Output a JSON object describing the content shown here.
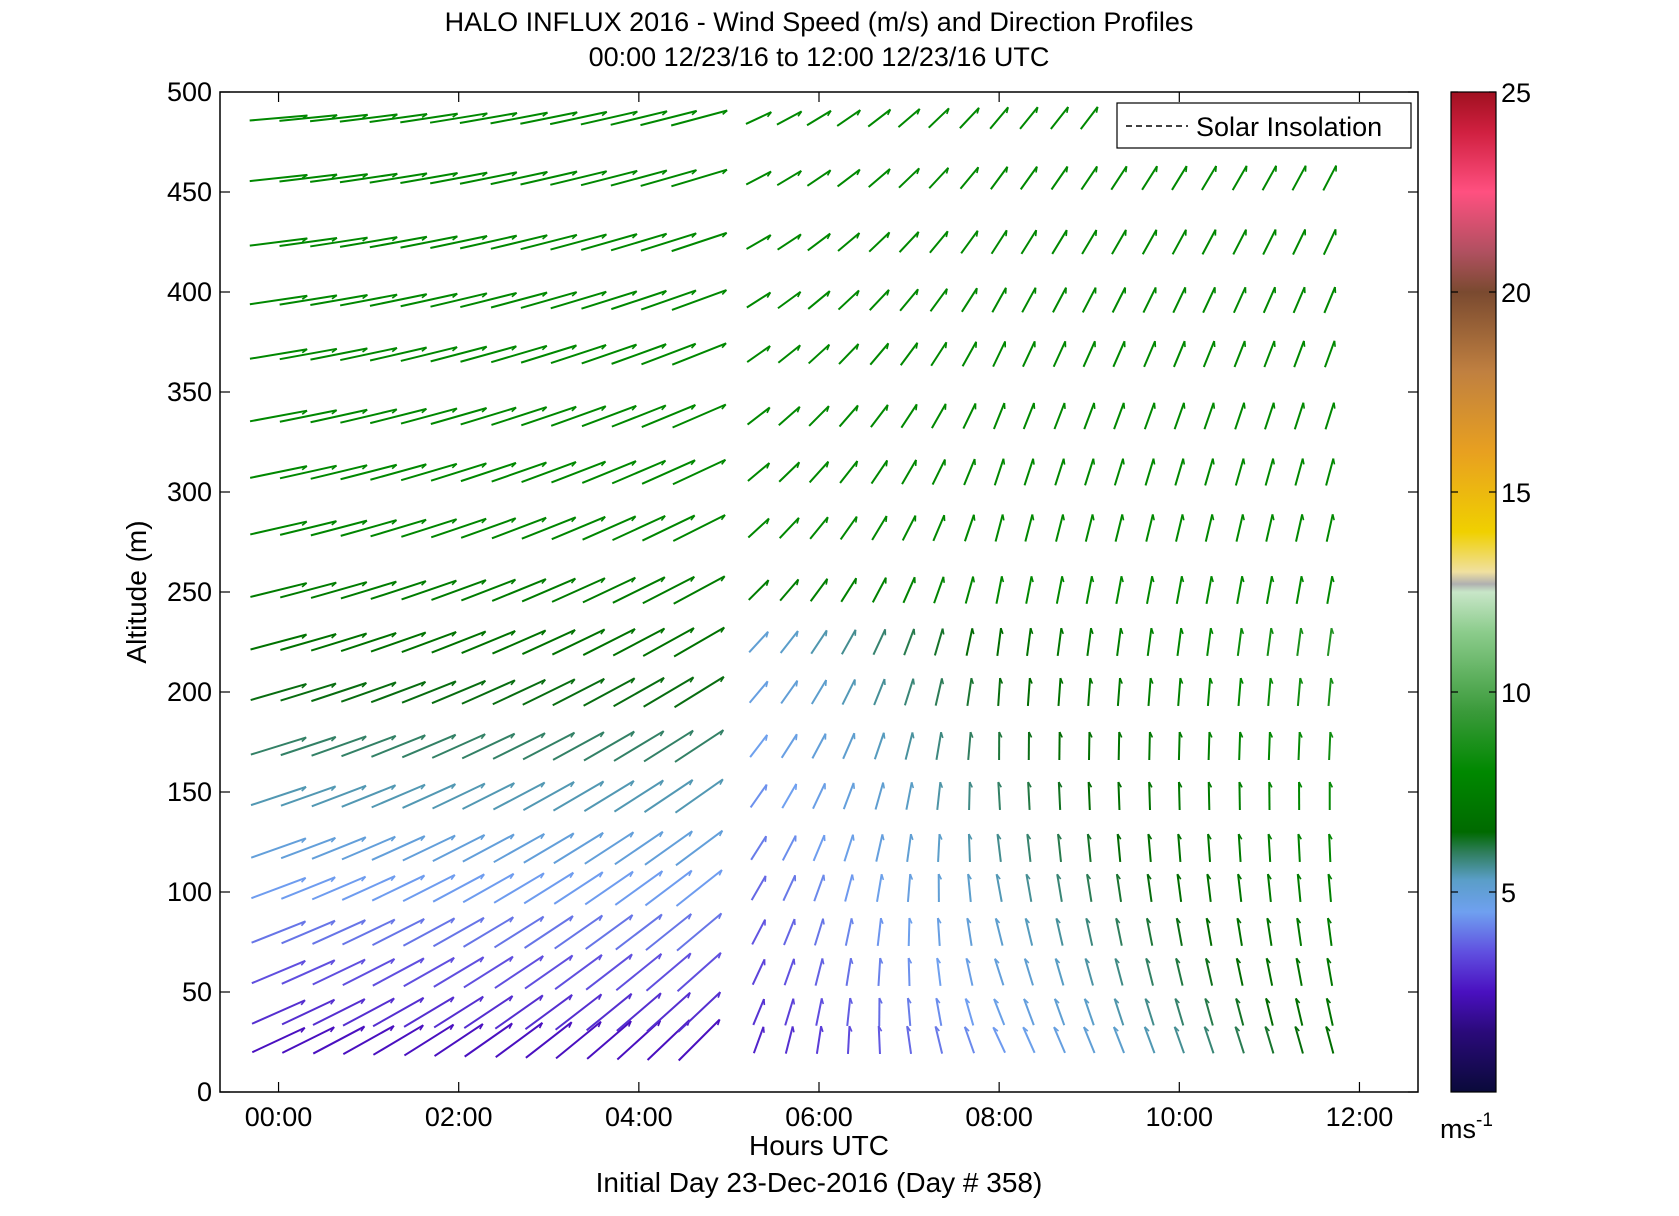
{
  "chart_data": {
    "type": "quiver",
    "title": "HALO INFLUX 2016 - Wind Speed (m/s) and Direction Profiles",
    "subtitle": "00:00 12/23/16 to 12:00 12/23/16  UTC",
    "xlabel": "Hours UTC",
    "footer": "Initial Day 23-Dec-2016 (Day # 358)",
    "ylabel": "Altitude (m)",
    "xlim": [
      -0.65,
      12.65
    ],
    "ylim": [
      0,
      500
    ],
    "x_ticks": [
      0,
      2,
      4,
      6,
      8,
      10,
      12
    ],
    "x_tick_labels": [
      "00:00",
      "02:00",
      "04:00",
      "06:00",
      "08:00",
      "10:00",
      "12:00"
    ],
    "y_ticks": [
      0,
      50,
      100,
      150,
      200,
      250,
      300,
      350,
      400,
      450,
      500
    ],
    "y_tick_labels": [
      "0",
      "50",
      "100",
      "150",
      "200",
      "250",
      "300",
      "350",
      "400",
      "450",
      "500"
    ],
    "legend": {
      "label": "Solar Insolation",
      "position": "top-right"
    },
    "colorbar": {
      "label_main": "ms",
      "label_exp": "-1",
      "ticks": [
        5,
        10,
        15,
        20,
        25
      ],
      "tick_labels": [
        "5",
        "10",
        "15",
        "20",
        "25"
      ],
      "range": [
        0,
        25
      ],
      "stops": [
        {
          "v": 0,
          "c": "#0a0a3a"
        },
        {
          "v": 1.5,
          "c": "#2a0a7a"
        },
        {
          "v": 2.5,
          "c": "#4a10c0"
        },
        {
          "v": 3.5,
          "c": "#6050e0"
        },
        {
          "v": 4.5,
          "c": "#6fa0f0"
        },
        {
          "v": 5.3,
          "c": "#5a9ec8"
        },
        {
          "v": 6.0,
          "c": "#2e7d5a"
        },
        {
          "v": 6.5,
          "c": "#006a00"
        },
        {
          "v": 8.0,
          "c": "#008800"
        },
        {
          "v": 9.5,
          "c": "#3a9a3a"
        },
        {
          "v": 11.5,
          "c": "#8ccc8c"
        },
        {
          "v": 12.5,
          "c": "#c8e6c8"
        },
        {
          "v": 12.7,
          "c": "#b0b0b0"
        },
        {
          "v": 13.0,
          "c": "#f0e0a0"
        },
        {
          "v": 14.0,
          "c": "#f0d000"
        },
        {
          "v": 16.0,
          "c": "#e8a020"
        },
        {
          "v": 18.0,
          "c": "#c08040"
        },
        {
          "v": 20.0,
          "c": "#7a4a30"
        },
        {
          "v": 21.0,
          "c": "#b05060"
        },
        {
          "v": 22.5,
          "c": "#ff5080"
        },
        {
          "v": 24.0,
          "c": "#d02040"
        },
        {
          "v": 25,
          "c": "#a01020"
        }
      ]
    },
    "times_hours": [
      0,
      0.33,
      0.67,
      1.0,
      1.33,
      1.67,
      2.0,
      2.33,
      2.67,
      3.0,
      3.33,
      3.67,
      4.0,
      4.33,
      4.67,
      5.33,
      5.67,
      6.0,
      6.33,
      6.67,
      7.0,
      7.33,
      7.67,
      8.0,
      8.33,
      8.67,
      9.0,
      9.33,
      9.67,
      10.0,
      10.33,
      10.67,
      11.0,
      11.33,
      11.67
    ],
    "altitudes_m": [
      26,
      40,
      60,
      80,
      102,
      122,
      148,
      173,
      200,
      225,
      251,
      282,
      310,
      338,
      369,
      396,
      425,
      457,
      487
    ],
    "direction_model": {
      "description": "Vector angle in degrees (0 = east, 90 = north) interpolated from anchor values at a=altitude index; speed in m/s",
      "anchors": [
        {
          "t": 0,
          "low_angle": 25,
          "high_angle": 5
        },
        {
          "t": 4.67,
          "low_angle": 45,
          "high_angle": 15
        },
        {
          "t": 5.33,
          "low_angle": 70,
          "high_angle": 25
        },
        {
          "t": 8.0,
          "low_angle": 115,
          "high_angle": 50
        },
        {
          "t": 11.67,
          "low_angle": 105,
          "high_angle": 60
        }
      ],
      "speed_low": 2.5,
      "speed_high": 8.0
    },
    "missing": [
      {
        "alt": 487,
        "from_hour": 9.1
      }
    ]
  }
}
